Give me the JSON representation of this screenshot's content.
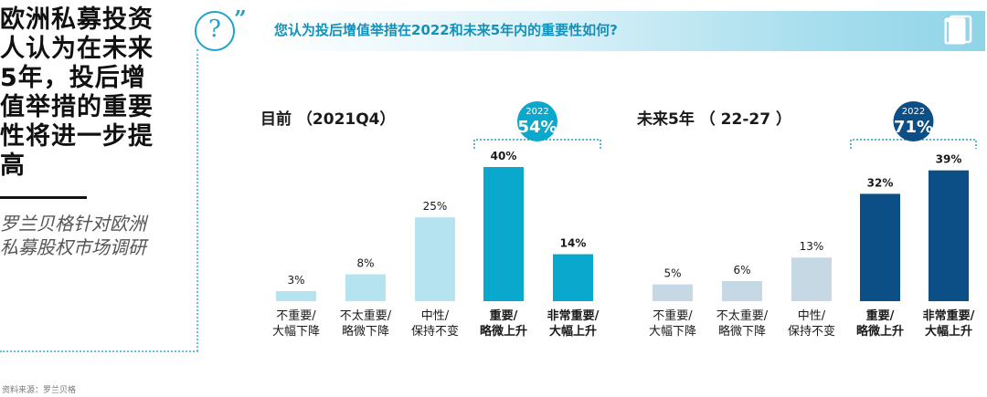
{
  "sidebar": {
    "title": "欧洲私募投资\n人认为在未来\n5年，投后增\n值举措的重要\n性将进一步提\n高",
    "subtitle": "罗兰贝格针对欧洲\n私募股权市场调研"
  },
  "header": {
    "question": "您认为投后增值举措在2022和未来5年内的重要性如何?",
    "icon_left": "question-icon",
    "icon_right": "book-icon"
  },
  "source": "资料来源：罗兰贝格",
  "colors": {
    "light_blue": "#b5e3ef",
    "mid_blue": "#0aa8cc",
    "light_gray_blue": "#c5d8e4",
    "navy": "#0c4f86",
    "accent": "#1fa3c7"
  },
  "chart_data": [
    {
      "type": "bar",
      "title": "目前 （2021Q4）",
      "categories": [
        "不重要/\n大幅下降",
        "不太重要/\n略微下降",
        "中性/\n保持不变",
        "重要/\n略微上升",
        "非常重要/\n大幅上升"
      ],
      "values": [
        3,
        8,
        25,
        40,
        14
      ],
      "value_labels": [
        "3%",
        "8%",
        "25%",
        "40%",
        "14%"
      ],
      "bold_categories": [
        3,
        4
      ],
      "ylim": [
        0,
        40
      ],
      "badge": {
        "year": "2022",
        "value": "54%"
      }
    },
    {
      "type": "bar",
      "title": "未来5年 （ 22-27 ）",
      "categories": [
        "不重要/\n大幅下降",
        "不太重要/\n略微下降",
        "中性/\n保持不变",
        "重要/\n略微上升",
        "非常重要/\n大幅上升"
      ],
      "values": [
        5,
        6,
        13,
        32,
        39
      ],
      "value_labels": [
        "5%",
        "6%",
        "13%",
        "32%",
        "39%"
      ],
      "bold_categories": [
        3,
        4
      ],
      "ylim": [
        0,
        40
      ],
      "badge": {
        "year": "2022",
        "value": "71%"
      }
    }
  ]
}
